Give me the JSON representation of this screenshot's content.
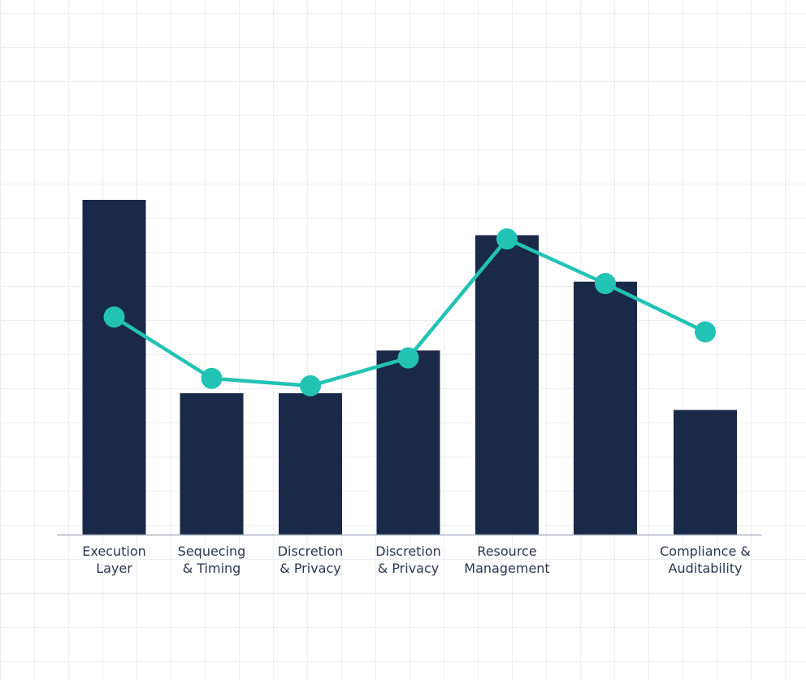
{
  "chart_data": {
    "type": "bar",
    "title": "",
    "xlabel": "",
    "ylabel": "",
    "categories": [
      [
        "Execution",
        "Layer"
      ],
      [
        "Sequecing",
        "& Timing"
      ],
      [
        "Discretion",
        "& Privacy"
      ],
      [
        "Discretion",
        "& Privacy"
      ],
      [
        "Resource",
        "Management"
      ],
      [],
      [
        "Compliance &",
        "Auditability"
      ]
    ],
    "ylim": [
      0,
      100
    ],
    "grid": true,
    "legend": "none",
    "series": [
      {
        "type": "bar",
        "values": [
          90,
          38,
          38,
          49.5,
          80.5,
          68,
          33.5
        ]
      },
      {
        "type": "line",
        "values": [
          58.5,
          42,
          40,
          47.5,
          79.5,
          67.5,
          54.5
        ]
      }
    ],
    "colors": {
      "bar": "#1b2949",
      "line": "#22c3b4",
      "grid": "#eceef3",
      "axis": "#aab3c2",
      "text": "#2b3650",
      "background": "#ffffff"
    }
  }
}
